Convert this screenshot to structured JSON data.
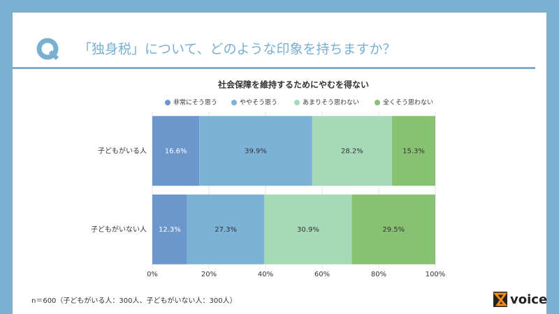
{
  "header": {
    "question": "「独身税」について、どのような印象を持ちますか？"
  },
  "chart_data": {
    "type": "stacked-bar-horizontal",
    "title": "社会保障を維持するためにやむを得ない",
    "categories": [
      "子どもがいる人",
      "子どもがいない人"
    ],
    "series": [
      {
        "name": "非常にそう思う",
        "color": "#6b97cd",
        "values": [
          16.6,
          12.3
        ],
        "value_labels": [
          "16.6%",
          "12.3%"
        ]
      },
      {
        "name": "ややそう思う",
        "color": "#7cb2d6",
        "values": [
          39.9,
          27.3
        ],
        "value_labels": [
          "39.9%",
          "27.3%"
        ]
      },
      {
        "name": "あまりそう思わない",
        "color": "#a6d9b7",
        "values": [
          28.2,
          30.9
        ],
        "value_labels": [
          "28.2%",
          "30.9%"
        ]
      },
      {
        "name": "全くそう思わない",
        "color": "#89c172",
        "values": [
          15.3,
          29.5
        ],
        "value_labels": [
          "15.3%",
          "29.5%"
        ]
      }
    ],
    "xlim": [
      0,
      100
    ],
    "xticks": [
      {
        "value": 0,
        "label": "0%"
      },
      {
        "value": 20,
        "label": "20%"
      },
      {
        "value": 40,
        "label": "40%"
      },
      {
        "value": 60,
        "label": "60%"
      },
      {
        "value": 80,
        "label": "80%"
      },
      {
        "value": 100,
        "label": "100%"
      }
    ],
    "grid": true,
    "legend": "top"
  },
  "footnote": "n＝600（子どもがいる人：300人、子どもがいない人：300人）",
  "brand": "voice"
}
